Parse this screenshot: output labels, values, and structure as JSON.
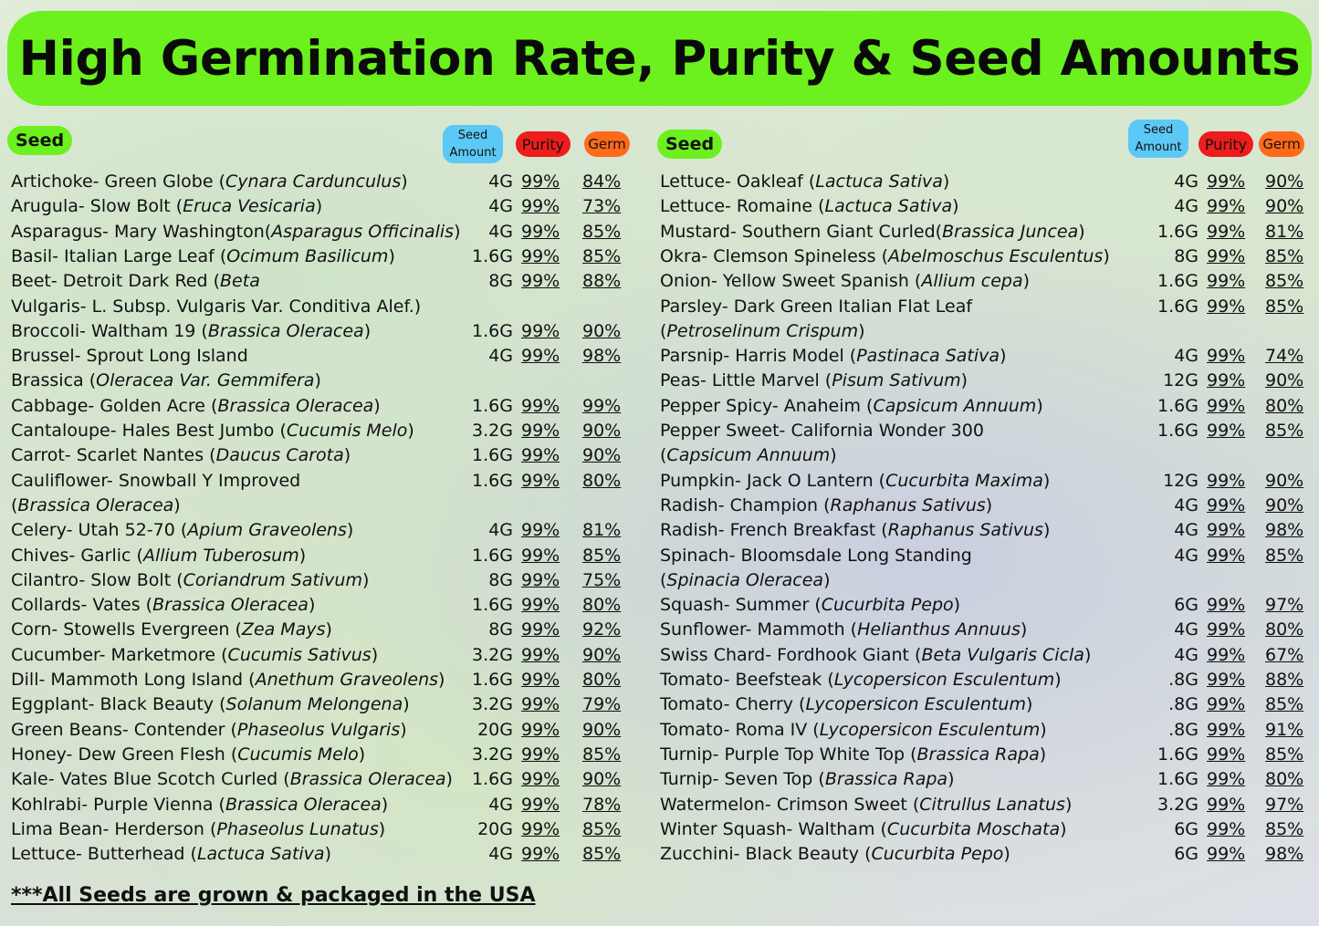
{
  "title": "High Germination Rate, Purity & Seed Amounts",
  "headers": {
    "seed": "Seed",
    "amount_line1": "Seed",
    "amount_line2": "Amount",
    "purity": "Purity",
    "germ": "Germ"
  },
  "left": [
    {
      "name": "Artichoke- Green Globe (Cynara Cardunculus)",
      "amount": "4G",
      "purity": "99%",
      "germ": "84%"
    },
    {
      "name": "Arugula- Slow Bolt (Eruca Vesicaria)",
      "amount": "4G",
      "purity": "99%",
      "germ": "73%"
    },
    {
      "name": "Asparagus- Mary Washington(Asparagus Officinalis)",
      "amount": "4G",
      "purity": "99%",
      "germ": "85%"
    },
    {
      "name": "Basil- Italian Large Leaf (Ocimum Basilicum)",
      "amount": "1.6G",
      "purity": "99%",
      "germ": "85%"
    },
    {
      "name": "Beet- Detroit Dark Red (Beta",
      "amount": "8G",
      "purity": "99%",
      "germ": "88%"
    },
    {
      "name": "Vulgaris- L. Subsp. Vulgaris Var. Conditiva Alef.)",
      "cont": true
    },
    {
      "name": "Broccoli- Waltham 19 (Brassica Oleracea)",
      "amount": "1.6G",
      "purity": "99%",
      "germ": "90%"
    },
    {
      "name": "Brussel- Sprout Long Island",
      "amount": "4G",
      "purity": "99%",
      "germ": "98%"
    },
    {
      "name": "Brassica (Oleracea Var. Gemmifera)",
      "cont": true
    },
    {
      "name": "Cabbage- Golden Acre (Brassica Oleracea)",
      "amount": "1.6G",
      "purity": "99%",
      "germ": "99%"
    },
    {
      "name": "Cantaloupe- Hales Best Jumbo (Cucumis Melo)",
      "amount": "3.2G",
      "purity": "99%",
      "germ": "90%"
    },
    {
      "name": "Carrot- Scarlet Nantes (Daucus Carota)",
      "amount": "1.6G",
      "purity": "99%",
      "germ": "90%"
    },
    {
      "name": "Cauliflower- Snowball Y Improved",
      "amount": "1.6G",
      "purity": "99%",
      "germ": "80%"
    },
    {
      "name": "(Brassica Oleracea)",
      "cont": true
    },
    {
      "name": "Celery- Utah 52-70 (Apium Graveolens)",
      "amount": "4G",
      "purity": "99%",
      "germ": "81%"
    },
    {
      "name": "Chives- Garlic (Allium Tuberosum)",
      "amount": "1.6G",
      "purity": "99%",
      "germ": "85%"
    },
    {
      "name": "Cilantro- Slow Bolt (Coriandrum Sativum)",
      "amount": "8G",
      "purity": "99%",
      "germ": "75%"
    },
    {
      "name": "Collards- Vates (Brassica Oleracea)",
      "amount": "1.6G",
      "purity": "99%",
      "germ": "80%"
    },
    {
      "name": "Corn- Stowells Evergreen (Zea Mays)",
      "amount": "8G",
      "purity": "99%",
      "germ": "92%"
    },
    {
      "name": "Cucumber- Marketmore (Cucumis Sativus)",
      "amount": "3.2G",
      "purity": "99%",
      "germ": "90%"
    },
    {
      "name": "Dill- Mammoth Long Island (Anethum Graveolens)",
      "amount": "1.6G",
      "purity": "99%",
      "germ": "80%"
    },
    {
      "name": "Eggplant- Black Beauty (Solanum Melongena)",
      "amount": "3.2G",
      "purity": "99%",
      "germ": "79%"
    },
    {
      "name": "Green Beans- Contender (Phaseolus Vulgaris)",
      "amount": "20G",
      "purity": "99%",
      "germ": "90%"
    },
    {
      "name": "Honey- Dew Green Flesh (Cucumis Melo)",
      "amount": "3.2G",
      "purity": "99%",
      "germ": "85%"
    },
    {
      "name": "Kale- Vates Blue Scotch Curled (Brassica Oleracea)",
      "amount": "1.6G",
      "purity": "99%",
      "germ": "90%"
    },
    {
      "name": "Kohlrabi- Purple Vienna (Brassica Oleracea)",
      "amount": "4G",
      "purity": "99%",
      "germ": "78%"
    },
    {
      "name": "Lima Bean- Herderson (Phaseolus Lunatus)",
      "amount": "20G",
      "purity": "99%",
      "germ": "85%"
    },
    {
      "name": "Lettuce- Butterhead (Lactuca Sativa)",
      "amount": "4G",
      "purity": "99%",
      "germ": "85%"
    }
  ],
  "right": [
    {
      "name": "Lettuce- Oakleaf (Lactuca Sativa)",
      "amount": "4G",
      "purity": "99%",
      "germ": "90%"
    },
    {
      "name": "Lettuce- Romaine (Lactuca Sativa)",
      "amount": "4G",
      "purity": "99%",
      "germ": "90%"
    },
    {
      "name": "Mustard-  Southern Giant Curled(Brassica Juncea)",
      "amount": "1.6G",
      "purity": "99%",
      "germ": "81%"
    },
    {
      "name": "Okra- Clemson Spineless (Abelmoschus Esculentus)",
      "amount": "8G",
      "purity": "99%",
      "germ": "85%"
    },
    {
      "name": "Onion- Yellow Sweet Spanish (Allium cepa)",
      "amount": "1.6G",
      "purity": "99%",
      "germ": "85%"
    },
    {
      "name": "Parsley- Dark Green Italian Flat Leaf",
      "amount": "1.6G",
      "purity": "99%",
      "germ": "85%"
    },
    {
      "name": "(Petroselinum Crispum)",
      "cont": true
    },
    {
      "name": "Parsnip- Harris Model (Pastinaca Sativa)",
      "amount": "4G",
      "purity": "99%",
      "germ": "74%"
    },
    {
      "name": "Peas- Little Marvel (Pisum Sativum)",
      "amount": "12G",
      "purity": "99%",
      "germ": "90%"
    },
    {
      "name": "Pepper Spicy- Anaheim (Capsicum Annuum)",
      "amount": "1.6G",
      "purity": "99%",
      "germ": "80%"
    },
    {
      "name": "Pepper Sweet- California Wonder 300",
      "amount": "1.6G",
      "purity": "99%",
      "germ": "85%"
    },
    {
      "name": "(Capsicum Annuum)",
      "cont": true
    },
    {
      "name": "Pumpkin- Jack O Lantern (Cucurbita Maxima)",
      "amount": "12G",
      "purity": "99%",
      "germ": "90%"
    },
    {
      "name": "Radish- Champion (Raphanus Sativus)",
      "amount": "4G",
      "purity": "99%",
      "germ": "90%"
    },
    {
      "name": "Radish- French Breakfast (Raphanus Sativus)",
      "amount": "4G",
      "purity": "99%",
      "germ": "98%"
    },
    {
      "name": "Spinach- Bloomsdale Long Standing",
      "amount": "4G",
      "purity": "99%",
      "germ": "85%"
    },
    {
      "name": "(Spinacia Oleracea)",
      "cont": true
    },
    {
      "name": "Squash- Summer (Cucurbita Pepo)",
      "amount": "6G",
      "purity": "99%",
      "germ": "97%"
    },
    {
      "name": "Sunflower- Mammoth (Helianthus Annuus)",
      "amount": "4G",
      "purity": "99%",
      "germ": "80%"
    },
    {
      "name": "Swiss Chard- Fordhook Giant (Beta Vulgaris Cicla)",
      "amount": "4G",
      "purity": "99%",
      "germ": "67%"
    },
    {
      "name": "Tomato- Beefsteak (Lycopersicon Esculentum)",
      "amount": ".8G",
      "purity": "99%",
      "germ": "88%"
    },
    {
      "name": "Tomato- Cherry (Lycopersicon Esculentum)",
      "amount": ".8G",
      "purity": "99%",
      "germ": "85%"
    },
    {
      "name": "Tomato- Roma IV  (Lycopersicon Esculentum)",
      "amount": ".8G",
      "purity": "99%",
      "germ": "91%"
    },
    {
      "name": "Turnip- Purple Top White Top (Brassica Rapa)",
      "amount": "1.6G",
      "purity": "99%",
      "germ": "85%"
    },
    {
      "name": "Turnip- Seven Top (Brassica Rapa)",
      "amount": "1.6G",
      "purity": "99%",
      "germ": "80%"
    },
    {
      "name": "Watermelon- Crimson Sweet (Citrullus Lanatus)",
      "amount": "3.2G",
      "purity": "99%",
      "germ": "97%"
    },
    {
      "name": "Winter Squash- Waltham (Cucurbita Moschata)",
      "amount": "6G",
      "purity": "99%",
      "germ": "85%"
    },
    {
      "name": "Zucchini-  Black Beauty (Cucurbita Pepo)",
      "amount": "6G",
      "purity": "99%",
      "germ": "98%"
    }
  ],
  "footer": "***All Seeds are grown & packaged in the USA"
}
